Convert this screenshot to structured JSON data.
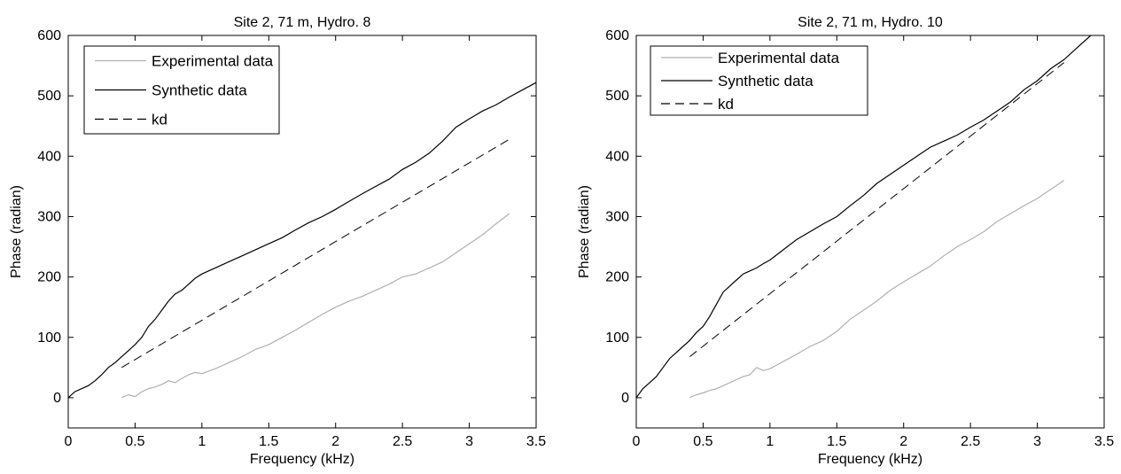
{
  "chart_data": [
    {
      "type": "line",
      "title": "Site 2, 71 m, Hydro. 8",
      "xlabel": "Frequency (kHz)",
      "ylabel": "Phase (radian)",
      "xlim": [
        0,
        3.5
      ],
      "ylim": [
        -50,
        600
      ],
      "xticks": [
        "0",
        "0.5",
        "1",
        "1.5",
        "2",
        "2.5",
        "3",
        "3.5"
      ],
      "yticks": [
        "0",
        "100",
        "200",
        "300",
        "400",
        "500",
        "600"
      ],
      "grid": false,
      "legend_position": "top-left",
      "series": [
        {
          "name": "Experimental data",
          "style": "solid",
          "color": "#b0b0b0",
          "x": [
            0.4,
            0.45,
            0.5,
            0.55,
            0.6,
            0.65,
            0.7,
            0.75,
            0.8,
            0.85,
            0.9,
            0.95,
            1.0,
            1.1,
            1.2,
            1.3,
            1.4,
            1.5,
            1.6,
            1.7,
            1.8,
            1.9,
            2.0,
            2.1,
            2.2,
            2.3,
            2.4,
            2.5,
            2.6,
            2.7,
            2.8,
            2.9,
            3.0,
            3.1,
            3.2,
            3.3
          ],
          "y": [
            0,
            5,
            2,
            10,
            15,
            18,
            22,
            28,
            25,
            32,
            38,
            42,
            40,
            48,
            58,
            68,
            80,
            88,
            100,
            112,
            125,
            138,
            150,
            160,
            168,
            178,
            188,
            200,
            205,
            215,
            225,
            240,
            255,
            270,
            288,
            305
          ]
        },
        {
          "name": "Synthetic data",
          "style": "solid",
          "color": "#000000",
          "x": [
            0,
            0.05,
            0.1,
            0.15,
            0.2,
            0.25,
            0.3,
            0.35,
            0.4,
            0.45,
            0.5,
            0.55,
            0.6,
            0.65,
            0.7,
            0.75,
            0.8,
            0.85,
            0.9,
            0.95,
            1.0,
            1.1,
            1.2,
            1.3,
            1.4,
            1.5,
            1.6,
            1.7,
            1.8,
            1.9,
            2.0,
            2.1,
            2.2,
            2.3,
            2.4,
            2.5,
            2.6,
            2.7,
            2.8,
            2.9,
            3.0,
            3.1,
            3.2,
            3.3,
            3.4,
            3.5
          ],
          "y": [
            0,
            10,
            15,
            20,
            28,
            38,
            50,
            58,
            68,
            78,
            88,
            100,
            118,
            130,
            145,
            160,
            172,
            178,
            188,
            198,
            205,
            215,
            225,
            235,
            245,
            255,
            265,
            278,
            290,
            300,
            312,
            325,
            338,
            350,
            362,
            378,
            390,
            405,
            425,
            448,
            462,
            475,
            485,
            498,
            510,
            522
          ]
        },
        {
          "name": "kd",
          "style": "dashed",
          "color": "#000000",
          "x": [
            0.4,
            3.3
          ],
          "y": [
            50,
            428
          ]
        }
      ]
    },
    {
      "type": "line",
      "title": "Site 2, 71 m, Hydro. 10",
      "xlabel": "Frequency (kHz)",
      "ylabel": "Phase (radian)",
      "xlim": [
        0,
        3.5
      ],
      "ylim": [
        -50,
        600
      ],
      "xticks": [
        "0",
        "0.5",
        "1",
        "1.5",
        "2",
        "2.5",
        "3",
        "3.5"
      ],
      "yticks": [
        "0",
        "100",
        "200",
        "300",
        "400",
        "500",
        "600"
      ],
      "grid": false,
      "legend_position": "top-left",
      "series": [
        {
          "name": "Experimental data",
          "style": "solid",
          "color": "#b0b0b0",
          "x": [
            0.4,
            0.45,
            0.5,
            0.55,
            0.6,
            0.65,
            0.7,
            0.75,
            0.8,
            0.85,
            0.9,
            0.95,
            1.0,
            1.1,
            1.2,
            1.3,
            1.4,
            1.5,
            1.6,
            1.7,
            1.8,
            1.9,
            2.0,
            2.1,
            2.2,
            2.3,
            2.4,
            2.5,
            2.6,
            2.7,
            2.8,
            2.9,
            3.0,
            3.1,
            3.2
          ],
          "y": [
            0,
            5,
            8,
            12,
            15,
            20,
            25,
            30,
            35,
            38,
            50,
            45,
            48,
            60,
            72,
            85,
            95,
            110,
            130,
            145,
            160,
            178,
            192,
            205,
            218,
            235,
            250,
            262,
            275,
            292,
            305,
            318,
            330,
            345,
            360
          ]
        },
        {
          "name": "Synthetic data",
          "style": "solid",
          "color": "#000000",
          "x": [
            0,
            0.05,
            0.1,
            0.15,
            0.2,
            0.25,
            0.3,
            0.35,
            0.4,
            0.45,
            0.5,
            0.55,
            0.6,
            0.65,
            0.7,
            0.75,
            0.8,
            0.85,
            0.9,
            0.95,
            1.0,
            1.1,
            1.2,
            1.3,
            1.4,
            1.5,
            1.6,
            1.7,
            1.8,
            1.9,
            2.0,
            2.1,
            2.2,
            2.3,
            2.4,
            2.5,
            2.6,
            2.7,
            2.8,
            2.9,
            3.0,
            3.1,
            3.2,
            3.3,
            3.4
          ],
          "y": [
            0,
            15,
            25,
            35,
            50,
            65,
            75,
            85,
            95,
            108,
            118,
            135,
            155,
            175,
            185,
            195,
            205,
            210,
            215,
            222,
            228,
            245,
            262,
            275,
            288,
            300,
            318,
            335,
            355,
            370,
            385,
            400,
            415,
            425,
            435,
            448,
            460,
            475,
            490,
            510,
            525,
            545,
            560,
            580,
            600
          ]
        },
        {
          "name": "kd",
          "style": "dashed",
          "color": "#000000",
          "x": [
            0.4,
            3.2
          ],
          "y": [
            68,
            555
          ]
        }
      ]
    }
  ]
}
